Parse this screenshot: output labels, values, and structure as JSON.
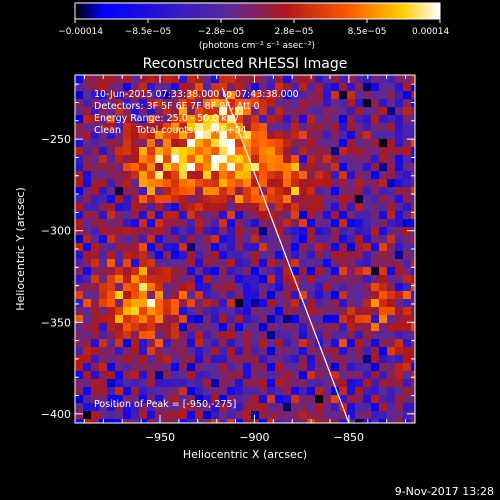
{
  "chart_data": {
    "type": "heatmap",
    "title": "Reconstructed RHESSI Image",
    "xlabel": "Heliocentric X (arcsec)",
    "ylabel": "Heliocentric Y (arcsec)",
    "xlim": [
      -995,
      -815
    ],
    "ylim": [
      -405,
      -215
    ],
    "xticks": [
      -950,
      -900,
      -850
    ],
    "xtick_labels": [
      "−950",
      "−900",
      "−850"
    ],
    "yticks": [
      -250,
      -300,
      -350,
      -400
    ],
    "ytick_labels": [
      "−250",
      "−300",
      "−350",
      "−400"
    ],
    "colorbar": {
      "range": [
        -0.00014,
        0.00014
      ],
      "tick_labels": [
        "−0.00014",
        "−8.5e−05",
        "−2.8e−05",
        "2.8e−05",
        "8.5e−05",
        "0.00014"
      ],
      "units": "(photons cm⁻² s⁻¹ asec⁻²)",
      "colormap": [
        "#000000",
        "#0000ff",
        "#5a2a9a",
        "#b01818",
        "#ff5a00",
        "#ffd000",
        "#ffffff"
      ]
    },
    "peak": {
      "x": -950,
      "y": -275
    },
    "bright_regions": [
      {
        "x": -920,
        "y": -245,
        "strength": 1.0
      },
      {
        "x": -945,
        "y": -263,
        "strength": 0.85
      },
      {
        "x": -962,
        "y": -338,
        "strength": 0.85
      },
      {
        "x": -905,
        "y": -268,
        "strength": 0.55
      },
      {
        "x": -880,
        "y": -270,
        "strength": 0.45
      },
      {
        "x": -830,
        "y": -345,
        "strength": 0.4
      }
    ],
    "limb_line": [
      [
        -917,
        -222
      ],
      [
        -850,
        -405
      ]
    ]
  },
  "annotations": {
    "line1": "10-Jun-2015 07:33:38.000 to 07:43:38.000",
    "line2": "Detectors: 3F 5F 6F 7F 8F 9F, Att 0",
    "line3": "Energy Range: 25.0 - 50.0 keV",
    "line4": "Clean     Total counts: 1.47E+04",
    "peak_label": "Position of Peak = [-950,-275]"
  },
  "timestamp": "9-Nov-2017 13:28"
}
